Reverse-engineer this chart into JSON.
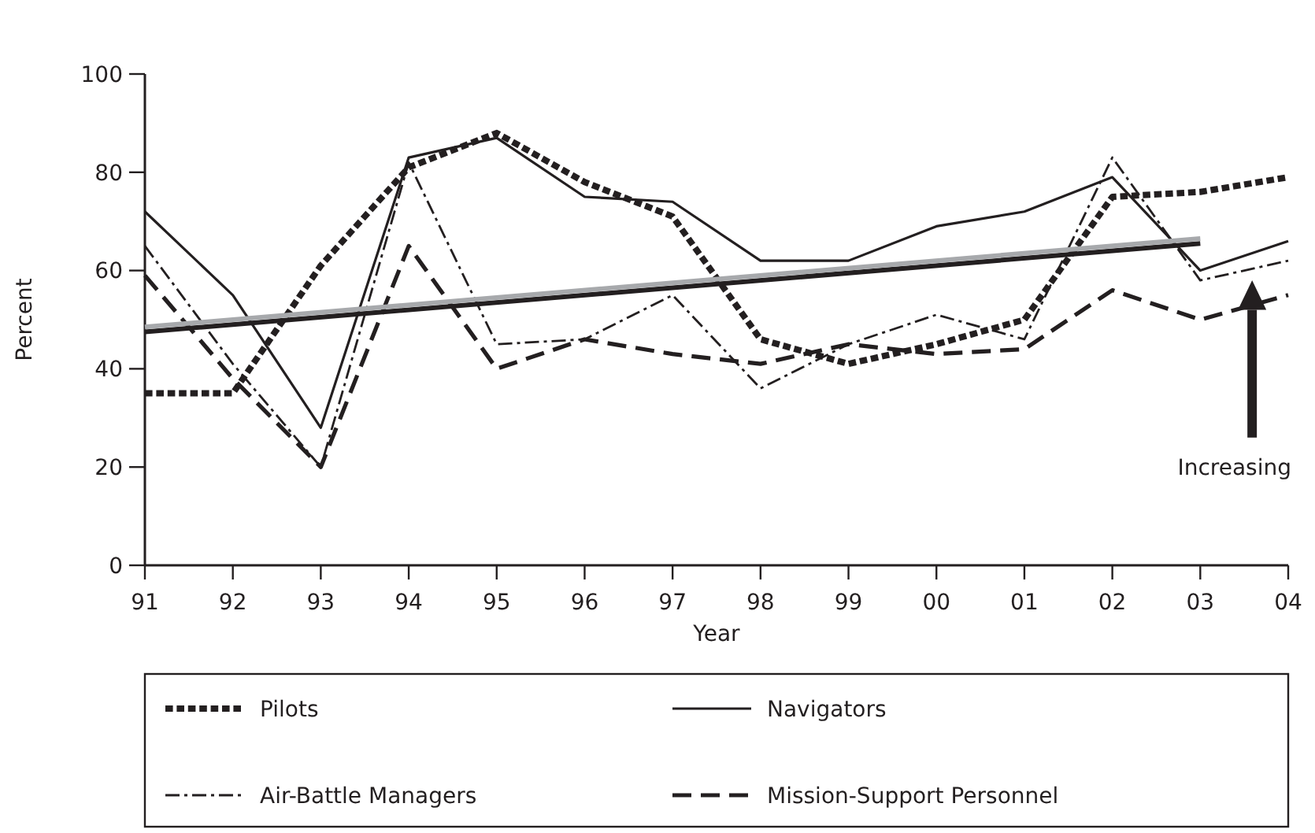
{
  "chart_data": {
    "type": "line",
    "xlabel": "Year",
    "ylabel": "Percent",
    "categories": [
      "91",
      "92",
      "93",
      "94",
      "95",
      "96",
      "97",
      "98",
      "99",
      "00",
      "01",
      "02",
      "03",
      "04"
    ],
    "ylim": [
      0,
      100
    ],
    "yticks": [
      0,
      20,
      40,
      60,
      80,
      100
    ],
    "grid": false,
    "legend": "bottom",
    "marker": "none",
    "series": [
      {
        "name": "Pilots",
        "color": "#231f20",
        "line_style": "dotted",
        "values": [
          35,
          35,
          61,
          81,
          88,
          78,
          71,
          46,
          41,
          45,
          50,
          75,
          76,
          79
        ]
      },
      {
        "name": "Navigators",
        "color": "#231f20",
        "line_style": "solid",
        "values": [
          72,
          55,
          28,
          83,
          87,
          75,
          74,
          62,
          62,
          69,
          72,
          79,
          60,
          66
        ]
      },
      {
        "name": "Air-Battle Managers",
        "color": "#231f20",
        "line_style": "dashdot",
        "values": [
          65,
          41,
          20,
          82,
          45,
          46,
          55,
          36,
          45,
          51,
          46,
          83,
          58,
          62
        ]
      },
      {
        "name": "Mission-Support Personnel",
        "color": "#231f20",
        "line_style": "dashed",
        "values": [
          59,
          38,
          20,
          65,
          40,
          46,
          43,
          41,
          45,
          43,
          44,
          56,
          50,
          55
        ]
      },
      {
        "type": "line",
        "color": "#231f20",
        "line_style": "solid",
        "x": [
          "91",
          "03"
        ],
        "values": [
          47.5,
          65.5
        ]
      },
      {
        "type": "line",
        "color": "#a7a9ac",
        "line_style": "solid",
        "x": [
          "91",
          "03"
        ],
        "values": [
          48.5,
          66.5
        ]
      }
    ],
    "annotations": [
      "Increasing"
    ]
  }
}
